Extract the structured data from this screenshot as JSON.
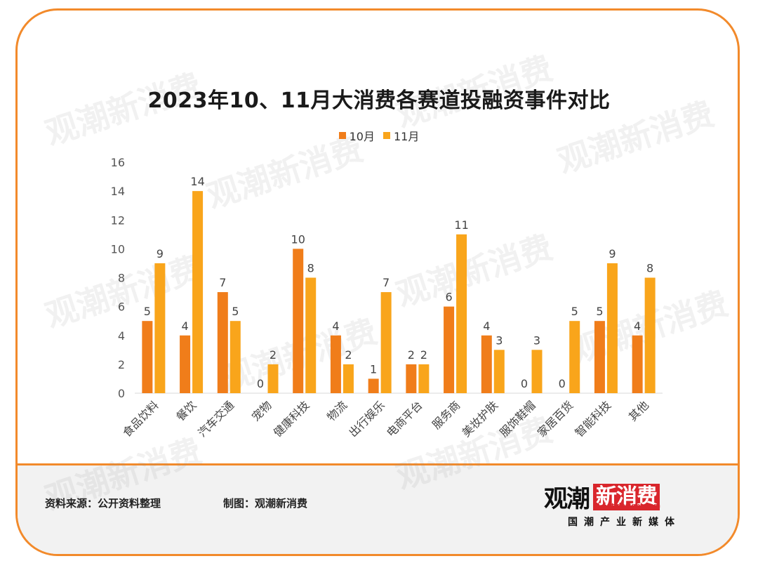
{
  "chart_data": {
    "type": "bar",
    "title": "2023年10、11月大消费各赛道投融资事件对比",
    "categories": [
      "食品饮料",
      "餐饮",
      "汽车交通",
      "宠物",
      "健康科技",
      "物流",
      "出行娱乐",
      "电商平台",
      "服务商",
      "美妆护肤",
      "服饰鞋帽",
      "家居百货",
      "智能科技",
      "其他"
    ],
    "series": [
      {
        "name": "10月",
        "color": "#f07d1a",
        "values": [
          5,
          4,
          7,
          0,
          10,
          4,
          1,
          2,
          6,
          4,
          0,
          0,
          5,
          4
        ]
      },
      {
        "name": "11月",
        "color": "#f9a51b",
        "values": [
          9,
          14,
          5,
          2,
          8,
          2,
          7,
          2,
          11,
          3,
          3,
          5,
          9,
          8
        ]
      }
    ],
    "yticks": [
      0,
      2,
      4,
      6,
      8,
      10,
      12,
      14,
      16
    ],
    "ylim": [
      0,
      16
    ],
    "legend_position": "top",
    "grid": false
  },
  "footer": {
    "source": "资料来源：公开资料整理",
    "maker": "制图：观潮新消费"
  },
  "logo": {
    "main": "观潮",
    "box": "新消费",
    "site": "tidesight.com",
    "tagline": "国潮产业新媒体"
  },
  "watermark": "观潮新消费"
}
